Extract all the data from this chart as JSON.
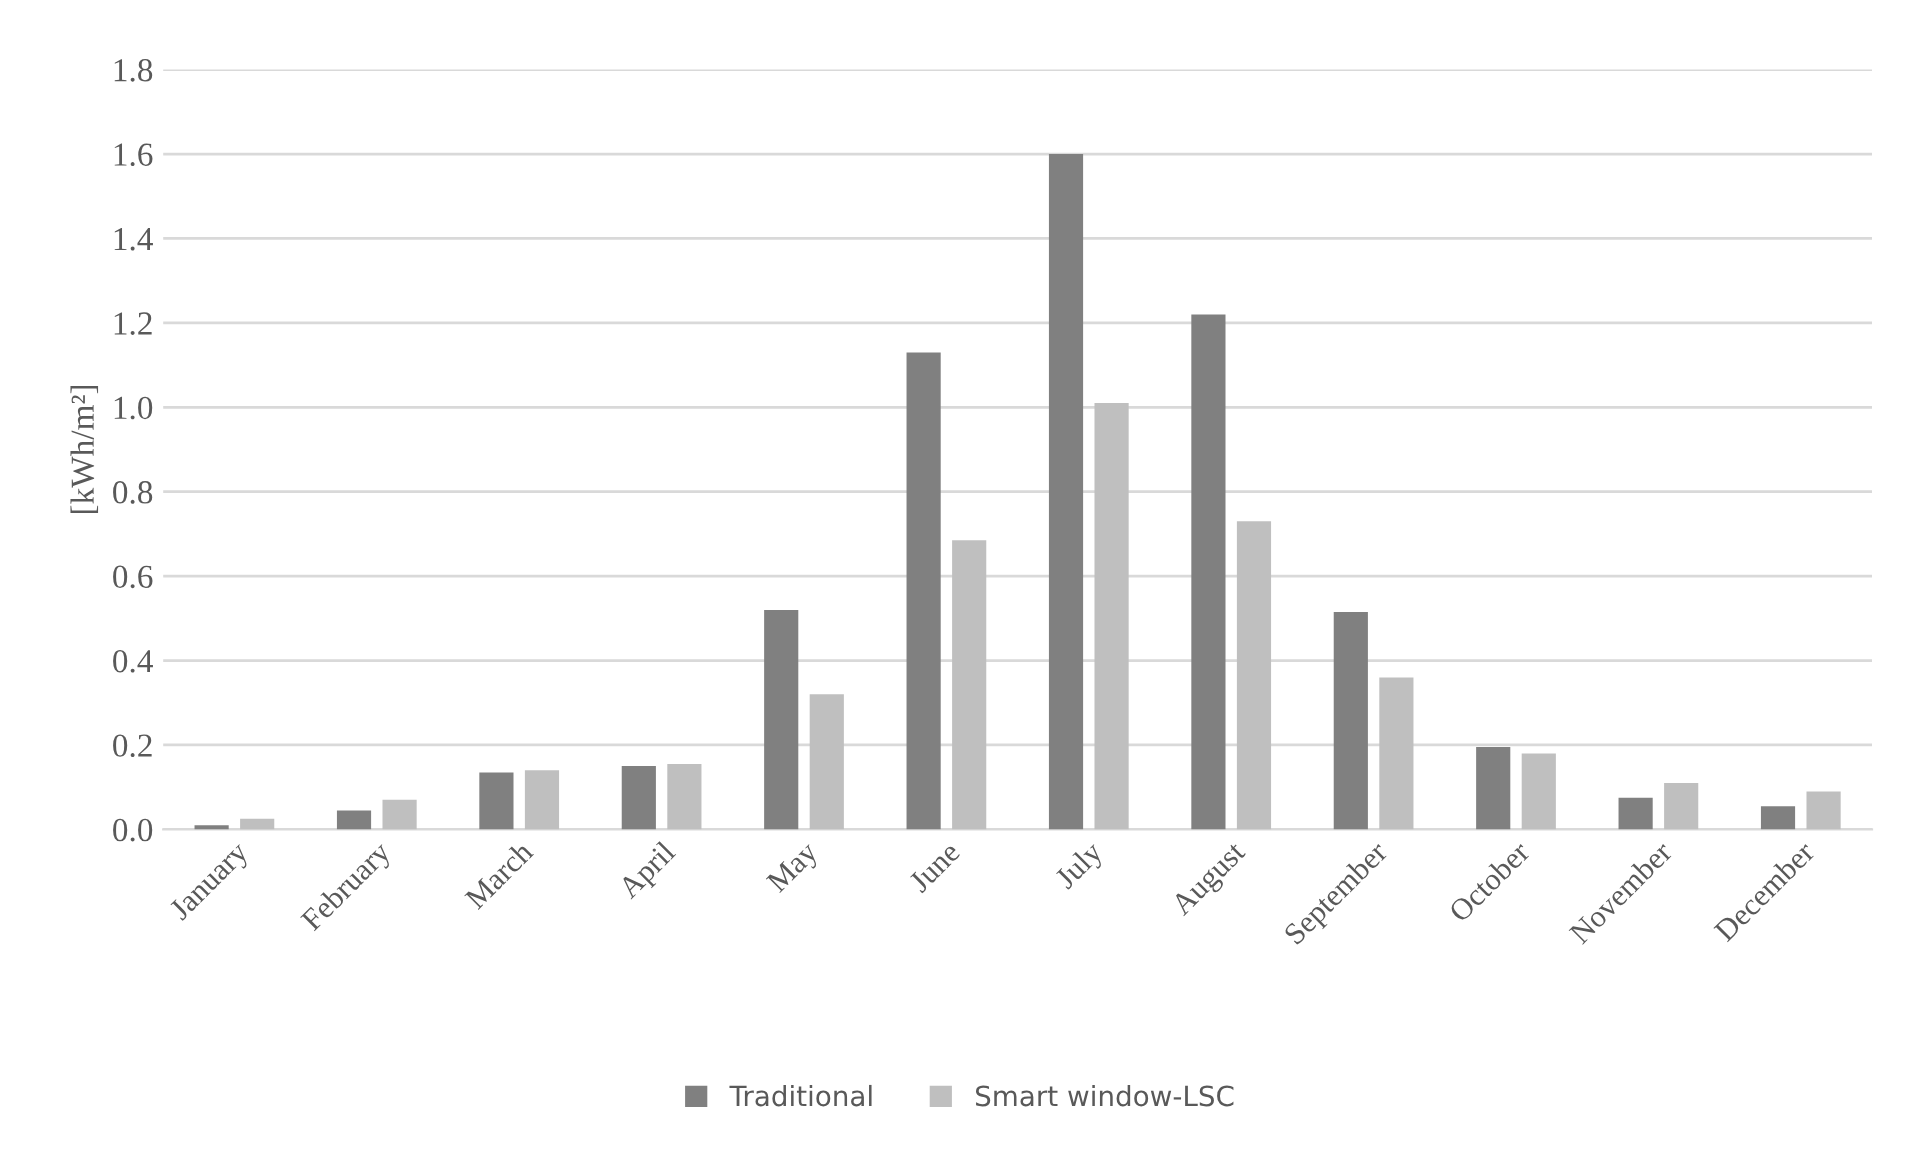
{
  "chart_data": {
    "type": "bar",
    "ylabel": "[kWh/m²]",
    "categories": [
      "January",
      "February",
      "March",
      "April",
      "May",
      "June",
      "July",
      "August",
      "September",
      "October",
      "November",
      "December"
    ],
    "series": [
      {
        "name": "Traditional",
        "color": "#808080",
        "values": [
          0.01,
          0.045,
          0.135,
          0.15,
          0.52,
          1.13,
          1.6,
          1.22,
          0.515,
          0.195,
          0.075,
          0.055
        ]
      },
      {
        "name": "Smart window-LSC",
        "color": "#bfbfbf",
        "values": [
          0.025,
          0.07,
          0.14,
          0.155,
          0.32,
          0.685,
          1.01,
          0.73,
          0.36,
          0.18,
          0.11,
          0.09
        ]
      }
    ],
    "ylim": [
      0,
      1.8
    ],
    "yticks": [
      {
        "value": 0,
        "label": "0.0"
      },
      0.2,
      0.4,
      0.6,
      0.8,
      {
        "value": 1,
        "label": "1.0"
      },
      1.2,
      1.4,
      1.6,
      1.8
    ],
    "grid": "y",
    "legend": "bottom"
  }
}
